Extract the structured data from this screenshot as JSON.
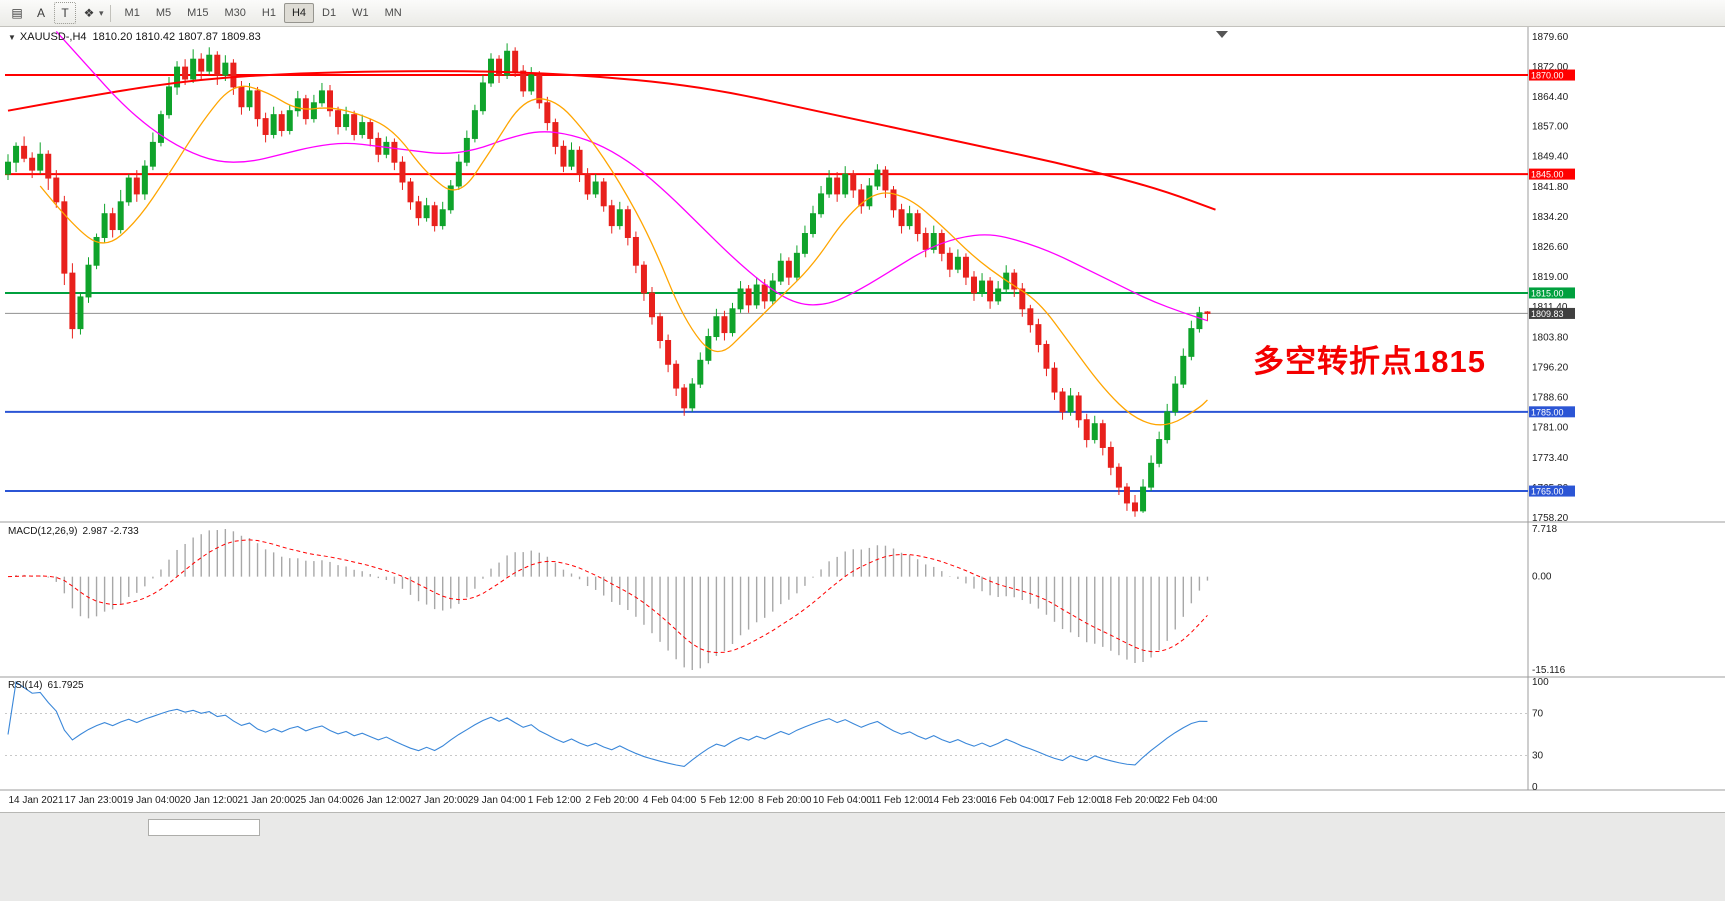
{
  "toolbar": {
    "tools": [
      {
        "name": "chart-layout-icon",
        "glyph": "▤"
      },
      {
        "name": "text-a-tool",
        "glyph": "A"
      },
      {
        "name": "text-frame-tool",
        "glyph": "T"
      },
      {
        "name": "shapes-tool",
        "glyph": "❖"
      }
    ],
    "dropdown_caret": "▾",
    "timeframes": [
      "M1",
      "M5",
      "M15",
      "M30",
      "H1",
      "H4",
      "D1",
      "W1",
      "MN"
    ],
    "selected_timeframe": "H4"
  },
  "icons": {
    "collapse": "▼"
  },
  "header": {
    "symbol": "XAUUSD-,H4",
    "ohlc": "1810.20 1810.42 1807.87 1809.83"
  },
  "annotation": {
    "text": "多空转折点1815",
    "color": "#F40000"
  },
  "macd_panel": {
    "label": "MACD(12,26,9)",
    "values": "2.987 -2.733"
  },
  "rsi_panel": {
    "label": "RSI(14)",
    "value": "61.7925"
  },
  "chart_data": {
    "type": "candlestick",
    "symbol": "XAUUSD",
    "timeframe": "H4",
    "colors": {
      "up": "#0FA32B",
      "down": "#E8211C",
      "macd_hist": "#A8A8A8",
      "macd_signal": "#FF0000",
      "rsi": "#3A87D9"
    },
    "price_axis": {
      "max": 1879.6,
      "min": 1758.2,
      "ticks": [
        1879.6,
        1872.0,
        1864.4,
        1857.0,
        1849.4,
        1841.8,
        1834.2,
        1826.6,
        1819.0,
        1811.4,
        1803.8,
        1796.2,
        1788.6,
        1781.0,
        1773.4,
        1765.8,
        1758.2
      ]
    },
    "hlines": [
      {
        "price": 1870.0,
        "label": "1870.00",
        "color": "#FF0000"
      },
      {
        "price": 1845.0,
        "label": "1845.00",
        "color": "#FF0000"
      },
      {
        "price": 1815.0,
        "label": "1815.00",
        "color": "#00A03E"
      },
      {
        "price": 1785.0,
        "label": "1785.00",
        "color": "#2B55D5"
      },
      {
        "price": 1765.0,
        "label": "1765.00",
        "color": "#2B55D5"
      }
    ],
    "current_price": {
      "value": 1809.83,
      "label": "1809.83",
      "line_color": "#909090",
      "badge_color": "#404040"
    },
    "candles": [
      [
        1845,
        1850,
        1843.5,
        1848
      ],
      [
        1848,
        1853,
        1845.5,
        1852
      ],
      [
        1852,
        1854.5,
        1848,
        1849
      ],
      [
        1849,
        1850.5,
        1844,
        1846
      ],
      [
        1846,
        1853,
        1845,
        1850
      ],
      [
        1850,
        1851,
        1841,
        1844
      ],
      [
        1844,
        1846,
        1836.5,
        1838
      ],
      [
        1838,
        1839.5,
        1817,
        1820
      ],
      [
        1820,
        1822.5,
        1803.5,
        1806
      ],
      [
        1806,
        1815,
        1804.5,
        1814
      ],
      [
        1814,
        1824,
        1812.5,
        1822
      ],
      [
        1822,
        1830,
        1821,
        1829
      ],
      [
        1829,
        1837.5,
        1827.5,
        1835
      ],
      [
        1835,
        1836.5,
        1829,
        1831
      ],
      [
        1831,
        1841,
        1830,
        1838
      ],
      [
        1838,
        1845,
        1837,
        1844
      ],
      [
        1844,
        1846,
        1838,
        1840
      ],
      [
        1840,
        1848.5,
        1838.5,
        1847
      ],
      [
        1847,
        1855.5,
        1846,
        1853
      ],
      [
        1853,
        1861,
        1852,
        1860
      ],
      [
        1860,
        1869.5,
        1859,
        1867
      ],
      [
        1867,
        1873.5,
        1865,
        1872
      ],
      [
        1872,
        1874,
        1867.5,
        1869
      ],
      [
        1869,
        1876.5,
        1868,
        1874
      ],
      [
        1874,
        1875.5,
        1869,
        1871
      ],
      [
        1871,
        1877,
        1870,
        1875
      ],
      [
        1875,
        1876,
        1867.5,
        1870
      ],
      [
        1870,
        1875,
        1868.5,
        1873
      ],
      [
        1873,
        1874,
        1865,
        1867
      ],
      [
        1867,
        1868.5,
        1860,
        1862
      ],
      [
        1862,
        1868,
        1861,
        1866
      ],
      [
        1866,
        1867,
        1857,
        1859
      ],
      [
        1859,
        1860.5,
        1853,
        1855
      ],
      [
        1855,
        1862,
        1854,
        1860
      ],
      [
        1860,
        1861,
        1854.5,
        1856
      ],
      [
        1856,
        1862.5,
        1855,
        1861
      ],
      [
        1861,
        1866,
        1859.5,
        1864
      ],
      [
        1864,
        1865,
        1857.5,
        1859
      ],
      [
        1859,
        1865,
        1858,
        1863
      ],
      [
        1863,
        1868,
        1862,
        1866
      ],
      [
        1866,
        1867.5,
        1859.5,
        1861
      ],
      [
        1861,
        1862,
        1855,
        1857
      ],
      [
        1857,
        1862,
        1856,
        1860
      ],
      [
        1860,
        1861,
        1853.5,
        1855
      ],
      [
        1855,
        1860,
        1854,
        1858
      ],
      [
        1858,
        1859,
        1852,
        1854
      ],
      [
        1854,
        1855.5,
        1848,
        1850
      ],
      [
        1850,
        1854.5,
        1849,
        1853
      ],
      [
        1853,
        1854,
        1846,
        1848
      ],
      [
        1848,
        1849.5,
        1841,
        1843
      ],
      [
        1843,
        1844,
        1836,
        1838
      ],
      [
        1838,
        1839.5,
        1832,
        1834
      ],
      [
        1834,
        1839,
        1833,
        1837
      ],
      [
        1837,
        1838,
        1830.5,
        1832
      ],
      [
        1832,
        1838,
        1831,
        1836
      ],
      [
        1836,
        1843.5,
        1835,
        1842
      ],
      [
        1842,
        1850,
        1841,
        1848
      ],
      [
        1848,
        1856,
        1847,
        1854
      ],
      [
        1854,
        1862.5,
        1853,
        1861
      ],
      [
        1861,
        1870,
        1860,
        1868
      ],
      [
        1868,
        1875.5,
        1867,
        1874
      ],
      [
        1874,
        1875,
        1868,
        1870
      ],
      [
        1870,
        1878,
        1869,
        1876
      ],
      [
        1876,
        1877,
        1869.5,
        1871
      ],
      [
        1871,
        1872.5,
        1864.5,
        1866
      ],
      [
        1866,
        1872,
        1865,
        1870
      ],
      [
        1870,
        1871,
        1861.5,
        1863
      ],
      [
        1863,
        1864.5,
        1856,
        1858
      ],
      [
        1858,
        1859,
        1850,
        1852
      ],
      [
        1852,
        1853.5,
        1845.5,
        1847
      ],
      [
        1847,
        1853,
        1846,
        1851
      ],
      [
        1851,
        1852,
        1843,
        1845
      ],
      [
        1845,
        1846.5,
        1838.5,
        1840
      ],
      [
        1840,
        1845,
        1839,
        1843
      ],
      [
        1843,
        1844,
        1835.5,
        1837
      ],
      [
        1837,
        1838.5,
        1830,
        1832
      ],
      [
        1832,
        1838,
        1831,
        1836
      ],
      [
        1836,
        1837,
        1827,
        1829
      ],
      [
        1829,
        1830.5,
        1820,
        1822
      ],
      [
        1822,
        1823,
        1813,
        1815
      ],
      [
        1815,
        1816.5,
        1807,
        1809
      ],
      [
        1809,
        1810,
        1801,
        1803
      ],
      [
        1803,
        1804.5,
        1795,
        1797
      ],
      [
        1797,
        1798,
        1789,
        1791
      ],
      [
        1791,
        1792,
        1784,
        1786
      ],
      [
        1786,
        1793.5,
        1785,
        1792
      ],
      [
        1792,
        1800,
        1791,
        1798
      ],
      [
        1798,
        1806,
        1797,
        1804
      ],
      [
        1804,
        1811,
        1803,
        1809
      ],
      [
        1809,
        1810.5,
        1803,
        1805
      ],
      [
        1805,
        1812.5,
        1804,
        1811
      ],
      [
        1811,
        1818,
        1810,
        1816
      ],
      [
        1816,
        1817,
        1810,
        1812
      ],
      [
        1812,
        1819,
        1811,
        1817
      ],
      [
        1817,
        1818.5,
        1811,
        1813
      ],
      [
        1813,
        1820,
        1812,
        1818
      ],
      [
        1818,
        1825,
        1817,
        1823
      ],
      [
        1823,
        1824,
        1817,
        1819
      ],
      [
        1819,
        1827,
        1818,
        1825
      ],
      [
        1825,
        1832,
        1824,
        1830
      ],
      [
        1830,
        1837,
        1829,
        1835
      ],
      [
        1835,
        1842,
        1834,
        1840
      ],
      [
        1840,
        1846,
        1839,
        1844
      ],
      [
        1844,
        1845.5,
        1838,
        1840
      ],
      [
        1840,
        1847,
        1839,
        1845
      ],
      [
        1845,
        1846,
        1839,
        1841
      ],
      [
        1841,
        1842.5,
        1835,
        1837
      ],
      [
        1837,
        1844,
        1836,
        1842
      ],
      [
        1842,
        1847.5,
        1841,
        1846
      ],
      [
        1846,
        1847,
        1839,
        1841
      ],
      [
        1841,
        1842,
        1834,
        1836
      ],
      [
        1836,
        1837.5,
        1830,
        1832
      ],
      [
        1832,
        1837,
        1831,
        1835
      ],
      [
        1835,
        1836,
        1828,
        1830
      ],
      [
        1830,
        1831.5,
        1824,
        1826
      ],
      [
        1826,
        1832,
        1825,
        1830
      ],
      [
        1830,
        1831,
        1823,
        1825
      ],
      [
        1825,
        1826.5,
        1819,
        1821
      ],
      [
        1821,
        1826,
        1820,
        1824
      ],
      [
        1824,
        1825,
        1817,
        1819
      ],
      [
        1819,
        1820.5,
        1813,
        1815
      ],
      [
        1815,
        1820,
        1814,
        1818
      ],
      [
        1818,
        1819,
        1811,
        1813
      ],
      [
        1813,
        1818,
        1812,
        1816
      ],
      [
        1816,
        1822,
        1815,
        1820
      ],
      [
        1820,
        1821,
        1814,
        1816
      ],
      [
        1816,
        1817.5,
        1809,
        1811
      ],
      [
        1811,
        1812,
        1805,
        1807
      ],
      [
        1807,
        1808.5,
        1800,
        1802
      ],
      [
        1802,
        1803,
        1794,
        1796
      ],
      [
        1796,
        1797.5,
        1788,
        1790
      ],
      [
        1790,
        1791,
        1783,
        1785
      ],
      [
        1785,
        1791,
        1784,
        1789
      ],
      [
        1789,
        1790,
        1781,
        1783
      ],
      [
        1783,
        1784.5,
        1776,
        1778
      ],
      [
        1778,
        1784,
        1777,
        1782
      ],
      [
        1782,
        1783,
        1774,
        1776
      ],
      [
        1776,
        1777.5,
        1769,
        1771
      ],
      [
        1771,
        1772,
        1764,
        1766
      ],
      [
        1766,
        1767,
        1760,
        1762
      ],
      [
        1762,
        1764,
        1758.5,
        1760
      ],
      [
        1760,
        1768,
        1759.5,
        1766
      ],
      [
        1766,
        1774,
        1765,
        1772
      ],
      [
        1772,
        1780,
        1771,
        1778
      ],
      [
        1778,
        1787,
        1777,
        1785
      ],
      [
        1785,
        1794,
        1784,
        1792
      ],
      [
        1792,
        1801,
        1791,
        1799
      ],
      [
        1799,
        1808,
        1798,
        1806
      ],
      [
        1806,
        1811.5,
        1805,
        1810
      ],
      [
        1810.2,
        1810.42,
        1807.87,
        1809.83
      ]
    ],
    "overlays": {
      "ma_red": {
        "color": "#FF0000",
        "width": 2,
        "points": [
          [
            0,
            1861
          ],
          [
            12,
            1865.5
          ],
          [
            24,
            1869
          ],
          [
            36,
            1870.5
          ],
          [
            48,
            1871
          ],
          [
            58,
            1871
          ],
          [
            66,
            1870.5
          ],
          [
            74,
            1869.5
          ],
          [
            82,
            1868
          ],
          [
            90,
            1865.5
          ],
          [
            98,
            1862
          ],
          [
            106,
            1858.5
          ],
          [
            114,
            1855
          ],
          [
            122,
            1851.5
          ],
          [
            130,
            1848
          ],
          [
            138,
            1844
          ],
          [
            144,
            1840.5
          ],
          [
            150,
            1836
          ]
        ]
      },
      "ma_magenta": {
        "color": "#FF00FF",
        "width": 1.3,
        "points": [
          [
            6,
            1881
          ],
          [
            10,
            1872
          ],
          [
            14,
            1863
          ],
          [
            18,
            1856
          ],
          [
            22,
            1851
          ],
          [
            26,
            1848
          ],
          [
            30,
            1848
          ],
          [
            34,
            1850
          ],
          [
            38,
            1852
          ],
          [
            42,
            1853
          ],
          [
            46,
            1852
          ],
          [
            50,
            1851
          ],
          [
            54,
            1850
          ],
          [
            58,
            1851
          ],
          [
            62,
            1854
          ],
          [
            66,
            1856
          ],
          [
            70,
            1855
          ],
          [
            74,
            1852
          ],
          [
            78,
            1847
          ],
          [
            82,
            1840
          ],
          [
            86,
            1832
          ],
          [
            90,
            1824
          ],
          [
            94,
            1817
          ],
          [
            98,
            1812
          ],
          [
            102,
            1812
          ],
          [
            106,
            1816
          ],
          [
            110,
            1821
          ],
          [
            114,
            1826
          ],
          [
            118,
            1829
          ],
          [
            122,
            1830
          ],
          [
            126,
            1828
          ],
          [
            130,
            1825
          ],
          [
            134,
            1821
          ],
          [
            138,
            1817
          ],
          [
            142,
            1813
          ],
          [
            146,
            1810
          ],
          [
            149,
            1808
          ]
        ]
      },
      "ma_orange": {
        "color": "#FFA500",
        "width": 1.3,
        "points": [
          [
            4,
            1842
          ],
          [
            8,
            1832
          ],
          [
            12,
            1826
          ],
          [
            16,
            1833
          ],
          [
            20,
            1845
          ],
          [
            24,
            1858
          ],
          [
            28,
            1868
          ],
          [
            32,
            1866
          ],
          [
            36,
            1861
          ],
          [
            40,
            1862
          ],
          [
            44,
            1860
          ],
          [
            48,
            1856
          ],
          [
            52,
            1845
          ],
          [
            56,
            1839
          ],
          [
            60,
            1851
          ],
          [
            64,
            1864
          ],
          [
            68,
            1864
          ],
          [
            72,
            1855
          ],
          [
            76,
            1843
          ],
          [
            80,
            1828
          ],
          [
            84,
            1808
          ],
          [
            88,
            1798
          ],
          [
            92,
            1806
          ],
          [
            96,
            1814
          ],
          [
            100,
            1822
          ],
          [
            104,
            1834
          ],
          [
            108,
            1841
          ],
          [
            112,
            1839
          ],
          [
            116,
            1832
          ],
          [
            120,
            1824
          ],
          [
            124,
            1818
          ],
          [
            128,
            1813
          ],
          [
            132,
            1802
          ],
          [
            136,
            1791
          ],
          [
            140,
            1783
          ],
          [
            144,
            1781
          ],
          [
            148,
            1786
          ],
          [
            149,
            1788
          ]
        ]
      }
    },
    "time_labels": [
      "14 Jan 2021",
      "17 Jan 23:00",
      "19 Jan 04:00",
      "20 Jan 12:00",
      "21 Jan 20:00",
      "25 Jan 04:00",
      "26 Jan 12:00",
      "27 Jan 20:00",
      "29 Jan 04:00",
      "1 Feb 12:00",
      "2 Feb 20:00",
      "4 Feb 04:00",
      "5 Feb 12:00",
      "8 Feb 20:00",
      "10 Feb 04:00",
      "11 Feb 12:00",
      "14 Feb 23:00",
      "16 Feb 04:00",
      "17 Feb 12:00",
      "18 Feb 20:00",
      "22 Feb 04:00"
    ],
    "indicators": {
      "macd": {
        "fast": 12,
        "slow": 26,
        "signal": 9,
        "axis_max": 7.718,
        "axis_min": -15.116,
        "axis_labels": [
          "7.718",
          "0.00",
          "-15.116"
        ],
        "last_values": [
          2.987,
          -2.733
        ]
      },
      "rsi": {
        "period": 14,
        "levels": [
          70,
          30
        ],
        "axis_labels": [
          100,
          70,
          30,
          0
        ],
        "last_value": 61.7925
      }
    }
  }
}
